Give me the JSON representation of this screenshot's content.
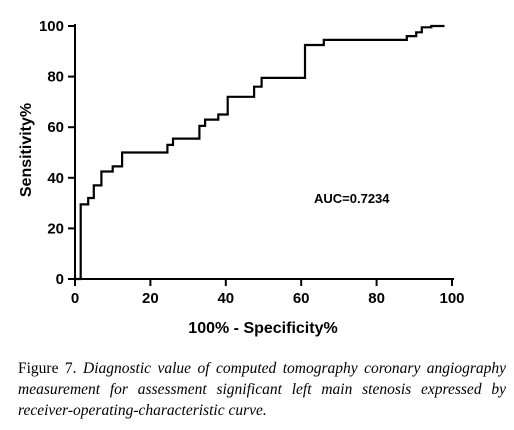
{
  "chart_data": {
    "type": "line",
    "title": "",
    "xlabel": "100% - Specificity%",
    "ylabel": "Sensitivity%",
    "xlim": [
      0,
      100
    ],
    "ylim": [
      0,
      100
    ],
    "x_ticks": [
      0,
      20,
      40,
      60,
      80,
      100
    ],
    "y_ticks": [
      0,
      20,
      40,
      60,
      80,
      100
    ],
    "grid": false,
    "annotation": "AUC=0.7234",
    "series": [
      {
        "style": "step",
        "color": "#000000",
        "x": [
          0,
          1.5,
          1.5,
          3.5,
          3.5,
          5,
          5,
          7,
          7,
          10,
          10,
          12.5,
          12.5,
          24.5,
          24.5,
          26,
          26,
          33,
          33,
          34.5,
          34.5,
          38,
          38,
          40.5,
          40.5,
          47.5,
          47.5,
          49.5,
          49.5,
          61,
          61,
          66,
          66,
          88,
          88,
          90.5,
          90.5,
          92,
          92,
          94.5,
          94.5,
          98
        ],
        "y": [
          0,
          0,
          29.5,
          29.5,
          32,
          32,
          37,
          37,
          42.5,
          42.5,
          44.5,
          44.5,
          50,
          50,
          53,
          53,
          55.5,
          55.5,
          60.5,
          60.5,
          63,
          63,
          65,
          65,
          72,
          72,
          76,
          76,
          79.5,
          79.5,
          92.5,
          92.5,
          94.5,
          94.5,
          96,
          96,
          97.5,
          97.5,
          99.5,
          99.5,
          100,
          100
        ]
      }
    ]
  },
  "caption": {
    "label": "Figure 7.",
    "text": "Diagnostic value of computed tomography coronary angiography measurement for assessment  significant left main stenosis expressed by receiver-operating-characteristic curve."
  }
}
